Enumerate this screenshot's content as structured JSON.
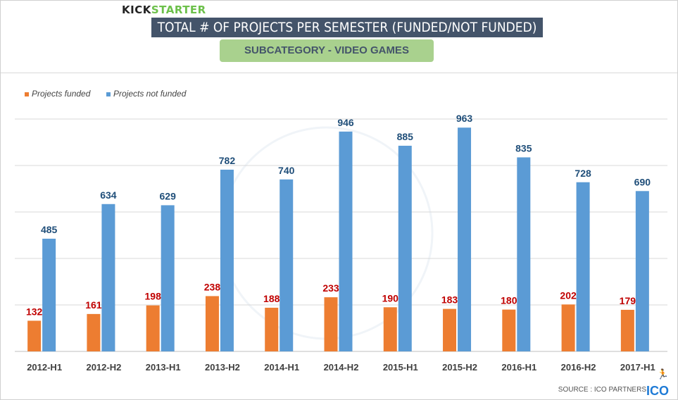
{
  "brand": {
    "kick": "KICK",
    "starter": "STARTER"
  },
  "title": "TOTAL # OF PROJECTS PER SEMESTER (FUNDED/NOT FUNDED)",
  "subtitle": "SUBCATEGORY - VIDEO GAMES",
  "source": "SOURCE : ICO PARTNERS",
  "ico_logo": "ICO",
  "watermark": "ICO PARTNERS",
  "chart_data": {
    "type": "bar",
    "title": "TOTAL # OF PROJECTS PER SEMESTER (FUNDED/NOT FUNDED)",
    "categories": [
      "2012-H1",
      "2012-H2",
      "2013-H1",
      "2013-H2",
      "2014-H1",
      "2014-H2",
      "2015-H1",
      "2015-H2",
      "2016-H1",
      "2016-H2",
      "2017-H1"
    ],
    "series": [
      {
        "name": "Projects funded",
        "color": "#ed7d31",
        "label_color": "#c00000",
        "values": [
          132,
          161,
          198,
          238,
          188,
          233,
          190,
          183,
          180,
          202,
          179
        ]
      },
      {
        "name": "Projects not funded",
        "color": "#5b9bd5",
        "label_color": "#1f4e79",
        "values": [
          485,
          634,
          629,
          782,
          740,
          946,
          885,
          963,
          835,
          728,
          690
        ]
      }
    ],
    "ylim": [
      0,
      1000
    ],
    "ygrid_step": 200,
    "grid": true,
    "legend": "top-left",
    "xlabel": "",
    "ylabel": ""
  }
}
